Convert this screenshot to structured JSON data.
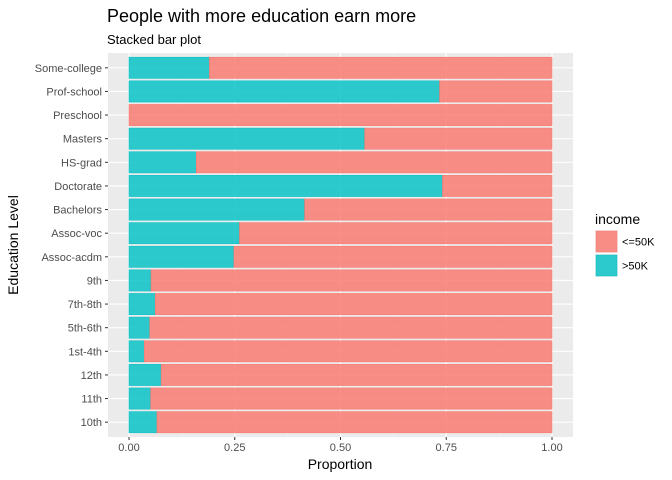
{
  "chart_data": {
    "type": "bar",
    "orientation": "horizontal",
    "stacked": true,
    "title": "People with more education earn more",
    "subtitle": "Stacked bar plot",
    "xlabel": "Proportion",
    "ylabel": "Education Level",
    "xlim": [
      0,
      1
    ],
    "xticks": [
      0,
      0.25,
      0.5,
      0.75,
      1
    ],
    "xtick_labels": [
      "0.00",
      "0.25",
      "0.50",
      "0.75",
      "1.00"
    ],
    "categories": [
      "10th",
      "11th",
      "12th",
      "1st-4th",
      "5th-6th",
      "7th-8th",
      "9th",
      "Assoc-acdm",
      "Assoc-voc",
      "Bachelors",
      "Doctorate",
      "HS-grad",
      "Masters",
      "Preschool",
      "Prof-school",
      "Some-college"
    ],
    "series": [
      {
        "name": "<=50K",
        "color": "#F8766D",
        "values": [
          0.934,
          0.949,
          0.924,
          0.964,
          0.951,
          0.938,
          0.948,
          0.752,
          0.739,
          0.585,
          0.259,
          0.841,
          0.443,
          1.0,
          0.266,
          0.81
        ]
      },
      {
        "name": ">50K",
        "color": "#00BFC4",
        "values": [
          0.066,
          0.051,
          0.076,
          0.036,
          0.049,
          0.062,
          0.052,
          0.248,
          0.261,
          0.415,
          0.741,
          0.159,
          0.557,
          0.0,
          0.734,
          0.19
        ]
      }
    ],
    "legend": {
      "title": "income",
      "position": "right"
    },
    "grid": true
  }
}
